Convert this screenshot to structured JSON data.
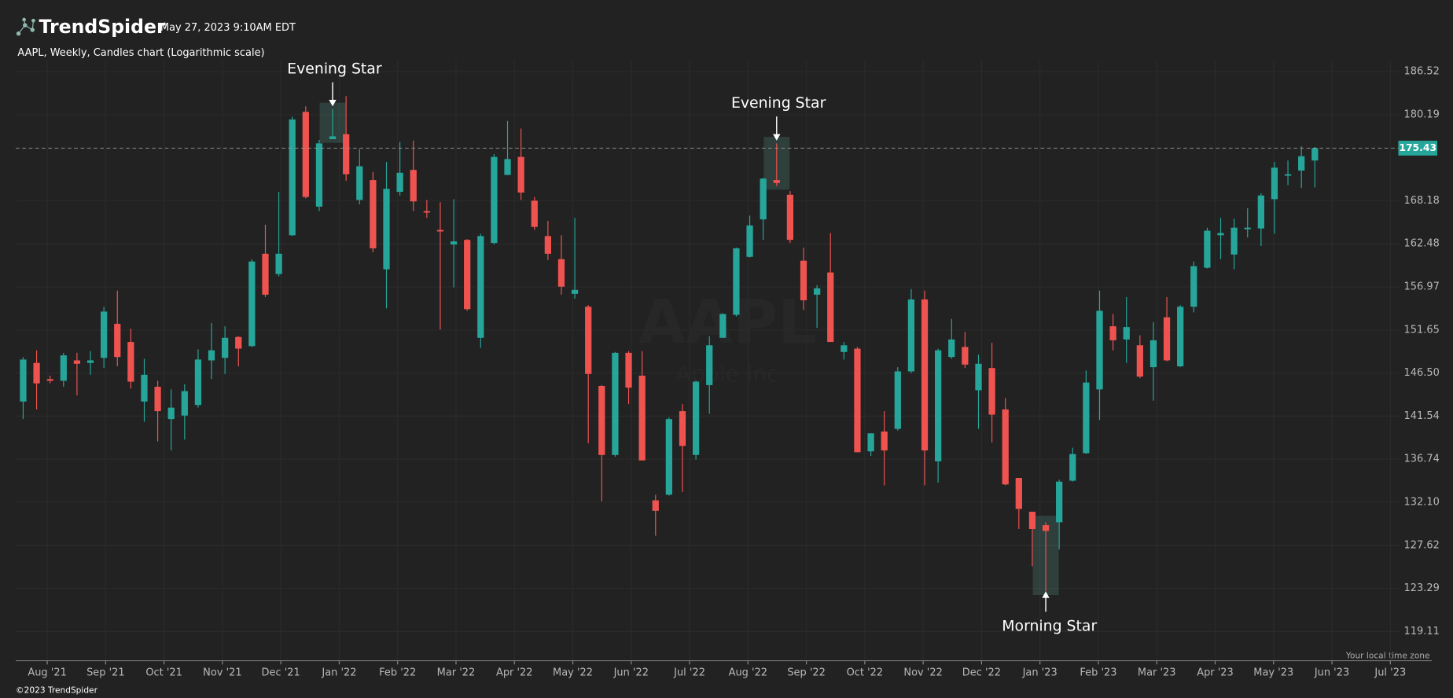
{
  "header": {
    "brand": "TrendSpider",
    "timestamp": "May 27, 2023 9:10AM EDT",
    "copyright": "©2023 TrendSpider",
    "timezone_note": "Your local time zone"
  },
  "chart_data": {
    "type": "candlestick",
    "title": "AAPL, Weekly, Candles chart (Logarithmic scale)",
    "watermark": "AAPL",
    "watermark_sub": "Apple Inc",
    "log_scale": true,
    "grid": true,
    "up_color": "#26a69a",
    "down_color": "#ef5350",
    "ylim": [
      116.35,
      188.2
    ],
    "yticks": [
      186.52,
      180.19,
      168.18,
      162.48,
      156.97,
      151.65,
      {
        "value": 146.5,
        "label": "146.50"
      },
      141.54,
      136.74,
      {
        "value": 132.1,
        "label": "132.10"
      },
      127.62,
      123.29,
      119.11
    ],
    "last_price": 175.43,
    "x_labels": [
      "Aug '21",
      "Sep '21",
      "Oct '21",
      "Nov '21",
      "Dec '21",
      "Jan '22",
      "Feb '22",
      "Mar '22",
      "Apr '22",
      "May '22",
      "Jun '22",
      "Jul '22",
      "Aug '22",
      "Sep '22",
      "Oct '22",
      "Nov '22",
      "Dec '22",
      "Jan '23",
      "Feb '23",
      "Mar '23",
      "Apr '23",
      "May '23",
      "Jun '23",
      "Jul '23"
    ],
    "ohlc": [
      [
        143.2,
        148.4,
        141.2,
        148.1
      ],
      [
        147.7,
        149.2,
        142.3,
        145.3
      ],
      [
        145.8,
        146.2,
        145.3,
        145.6
      ],
      [
        145.6,
        148.9,
        144.9,
        148.6
      ],
      [
        148.0,
        148.9,
        143.9,
        147.6
      ],
      [
        147.7,
        149.1,
        146.3,
        148.0
      ],
      [
        148.3,
        154.5,
        147.1,
        153.9
      ],
      [
        152.4,
        156.5,
        147.3,
        148.4
      ],
      [
        150.2,
        151.8,
        144.7,
        145.5
      ],
      [
        143.2,
        148.2,
        140.9,
        146.3
      ],
      [
        144.9,
        145.6,
        138.7,
        142.1
      ],
      [
        141.2,
        144.6,
        137.7,
        142.5
      ],
      [
        141.6,
        145.2,
        138.9,
        144.4
      ],
      [
        142.8,
        149.3,
        142.5,
        148.1
      ],
      [
        148.0,
        152.5,
        145.8,
        149.2
      ],
      [
        148.3,
        152.1,
        146.4,
        150.7
      ],
      [
        150.8,
        150.9,
        147.3,
        149.4
      ],
      [
        149.7,
        160.5,
        149.6,
        160.2
      ],
      [
        161.2,
        165.0,
        155.7,
        156.0
      ],
      [
        158.6,
        169.4,
        158.3,
        161.2
      ],
      [
        163.6,
        179.9,
        163.5,
        179.5
      ],
      [
        180.6,
        181.4,
        168.5,
        168.7
      ],
      [
        167.4,
        176.6,
        166.8,
        176.1
      ],
      [
        176.7,
        181.0,
        176.7,
        177.1
      ],
      [
        177.4,
        182.9,
        170.9,
        171.8
      ],
      [
        168.3,
        175.3,
        167.7,
        172.9
      ],
      [
        171.0,
        172.1,
        161.4,
        161.9
      ],
      [
        159.2,
        173.5,
        154.3,
        169.8
      ],
      [
        169.4,
        176.3,
        168.9,
        172.0
      ],
      [
        172.4,
        176.5,
        166.8,
        168.1
      ],
      [
        166.8,
        168.3,
        165.9,
        166.6
      ],
      [
        164.3,
        168.0,
        151.7,
        164.1
      ],
      [
        162.4,
        168.4,
        156.9,
        162.8
      ],
      [
        163.0,
        163.1,
        154.0,
        154.2
      ],
      [
        150.7,
        163.8,
        149.5,
        163.5
      ],
      [
        162.6,
        174.6,
        162.4,
        174.2
      ],
      [
        171.7,
        179.3,
        171.7,
        173.9
      ],
      [
        174.2,
        178.2,
        168.3,
        169.3
      ],
      [
        168.2,
        168.7,
        164.3,
        164.7
      ],
      [
        163.5,
        165.5,
        160.4,
        161.2
      ],
      [
        160.5,
        163.6,
        156.0,
        157.0
      ],
      [
        156.1,
        165.9,
        155.5,
        156.6
      ],
      [
        154.5,
        154.7,
        138.5,
        146.4
      ],
      [
        145.0,
        145.1,
        132.2,
        137.2
      ],
      [
        137.2,
        149.0,
        137.0,
        148.9
      ],
      [
        148.9,
        149.1,
        142.9,
        144.8
      ],
      [
        146.2,
        149.1,
        136.6,
        136.6
      ],
      [
        132.3,
        132.9,
        128.6,
        131.2
      ],
      [
        132.9,
        141.4,
        132.8,
        141.2
      ],
      [
        142.1,
        142.9,
        133.2,
        138.2
      ],
      [
        137.2,
        145.6,
        136.7,
        145.5
      ],
      [
        145.1,
        150.9,
        141.8,
        149.8
      ],
      [
        150.7,
        153.7,
        150.7,
        153.6
      ],
      [
        153.5,
        162.0,
        153.3,
        161.9
      ],
      [
        160.8,
        166.2,
        160.7,
        164.9
      ],
      [
        165.7,
        171.3,
        163.0,
        171.2
      ],
      [
        171.0,
        176.1,
        170.2,
        170.6
      ],
      [
        169.0,
        169.5,
        162.6,
        163.0
      ],
      [
        160.3,
        162.0,
        154.1,
        155.3
      ],
      [
        156.0,
        157.2,
        151.9,
        156.8
      ],
      [
        158.8,
        163.9,
        150.2,
        150.2
      ],
      [
        149.0,
        150.2,
        148.1,
        149.8
      ],
      [
        149.4,
        149.6,
        137.5,
        137.5
      ],
      [
        137.6,
        139.6,
        137.1,
        139.6
      ],
      [
        139.8,
        142.1,
        133.9,
        137.7
      ],
      [
        140.1,
        147.2,
        139.9,
        146.7
      ],
      [
        146.7,
        156.7,
        146.5,
        155.4
      ],
      [
        155.4,
        156.5,
        133.9,
        137.7
      ],
      [
        136.5,
        149.4,
        134.2,
        149.2
      ],
      [
        148.4,
        153.0,
        148.2,
        150.5
      ],
      [
        149.6,
        151.4,
        147.1,
        147.5
      ],
      [
        144.5,
        148.7,
        140.1,
        147.6
      ],
      [
        147.1,
        150.1,
        138.6,
        141.7
      ],
      [
        142.3,
        143.6,
        133.9,
        134.0
      ],
      [
        134.7,
        134.7,
        129.3,
        131.4
      ],
      [
        131.1,
        131.1,
        125.5,
        129.3
      ],
      [
        129.7,
        130.0,
        123.0,
        129.1
      ],
      [
        130.0,
        134.5,
        127.2,
        134.3
      ],
      [
        134.4,
        138.0,
        134.3,
        137.3
      ],
      [
        137.4,
        146.8,
        137.3,
        145.4
      ],
      [
        144.6,
        156.5,
        141.1,
        154.0
      ],
      [
        152.1,
        153.6,
        149.2,
        150.4
      ],
      [
        150.5,
        155.7,
        147.7,
        152.0
      ],
      [
        149.8,
        151.0,
        145.9,
        146.1
      ],
      [
        147.2,
        152.6,
        143.3,
        150.4
      ],
      [
        153.2,
        155.7,
        147.9,
        148.0
      ],
      [
        147.3,
        154.7,
        147.2,
        154.5
      ],
      [
        154.5,
        160.2,
        153.8,
        159.6
      ],
      [
        159.4,
        164.6,
        159.3,
        164.2
      ],
      [
        163.6,
        165.9,
        160.5,
        163.9
      ],
      [
        161.1,
        165.8,
        159.2,
        164.6
      ],
      [
        164.4,
        167.2,
        163.3,
        164.6
      ],
      [
        164.5,
        169.2,
        162.2,
        168.9
      ],
      [
        168.4,
        173.5,
        163.8,
        172.7
      ],
      [
        171.6,
        173.7,
        170.3,
        171.8
      ],
      [
        172.3,
        175.7,
        169.9,
        174.3
      ],
      [
        173.7,
        175.6,
        170.0,
        175.43
      ]
    ],
    "annotations": [
      {
        "text": "Evening Star",
        "candle": 23,
        "side": "above"
      },
      {
        "text": "Evening Star",
        "candle": 56,
        "side": "above"
      },
      {
        "text": "Morning Star",
        "candle": 76,
        "side": "below"
      }
    ]
  }
}
